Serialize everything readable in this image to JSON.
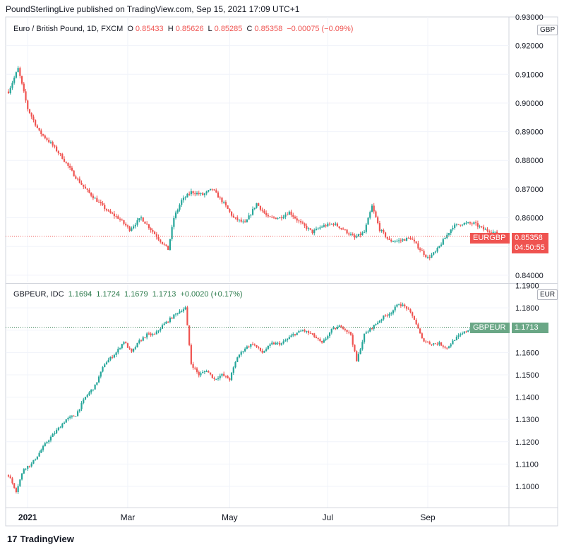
{
  "publisher_line": "PoundSterlingLive published on TradingView.com, Sep 15, 2021 17:09 UTC+1",
  "footer": {
    "brand": "TradingView",
    "logo_glyph": "17"
  },
  "colors": {
    "up": "#26a69a",
    "up_dark": "#2b7a4b",
    "down": "#ef5350",
    "grid": "#f0f3fa",
    "axis_text": "#131722",
    "eurgbp_tag": "#ef5350",
    "gbpeur_tag": "#6aa786"
  },
  "chart_data": [
    {
      "type": "candlestick",
      "symbol_title": "Euro / British Pound, 1D, FXCM",
      "ohlc_legend": {
        "o_label": "O",
        "o": "0.85433",
        "h_label": "H",
        "h": "0.85626",
        "l_label": "L",
        "l": "0.85285",
        "c_label": "C",
        "c": "0.85358",
        "change": "−0.00075 (−0.09%)"
      },
      "currency_label": "GBP",
      "y_ticks": [
        "0.93000",
        "0.92000",
        "0.91000",
        "0.90000",
        "0.89000",
        "0.88000",
        "0.87000",
        "0.86000",
        "0.85000",
        "0.84000"
      ],
      "ylim": [
        0.8375,
        0.93
      ],
      "last_price_tag": {
        "symbol": "EURGBP",
        "price": "0.85358",
        "countdown": "04:50:55"
      },
      "last_price": 0.85358,
      "anchors": [
        [
          0,
          0.904
        ],
        [
          5,
          0.912
        ],
        [
          10,
          0.898
        ],
        [
          16,
          0.89
        ],
        [
          22,
          0.886
        ],
        [
          28,
          0.881
        ],
        [
          34,
          0.875
        ],
        [
          40,
          0.87
        ],
        [
          46,
          0.866
        ],
        [
          52,
          0.862
        ],
        [
          57,
          0.86
        ],
        [
          63,
          0.856
        ],
        [
          69,
          0.86
        ],
        [
          74,
          0.856
        ],
        [
          79,
          0.852
        ],
        [
          83,
          0.849
        ],
        [
          86,
          0.86
        ],
        [
          90,
          0.866
        ],
        [
          95,
          0.869
        ],
        [
          101,
          0.868
        ],
        [
          106,
          0.87
        ],
        [
          112,
          0.865
        ],
        [
          117,
          0.86
        ],
        [
          123,
          0.858
        ],
        [
          129,
          0.865
        ],
        [
          135,
          0.86
        ],
        [
          141,
          0.86
        ],
        [
          146,
          0.862
        ],
        [
          152,
          0.858
        ],
        [
          158,
          0.855
        ],
        [
          163,
          0.857
        ],
        [
          169,
          0.858
        ],
        [
          174,
          0.856
        ],
        [
          180,
          0.853
        ],
        [
          185,
          0.855
        ],
        [
          189,
          0.864
        ],
        [
          193,
          0.856
        ],
        [
          198,
          0.852
        ],
        [
          203,
          0.852
        ],
        [
          209,
          0.853
        ],
        [
          214,
          0.849
        ],
        [
          218,
          0.846
        ],
        [
          222,
          0.848
        ],
        [
          226,
          0.852
        ],
        [
          231,
          0.857
        ],
        [
          236,
          0.858
        ],
        [
          242,
          0.858
        ],
        [
          247,
          0.856
        ],
        [
          252,
          0.855
        ],
        [
          256,
          0.8536
        ]
      ]
    },
    {
      "type": "candlestick",
      "symbol_title": "GBPEUR, IDC",
      "ohlc_legend": {
        "o": "1.1694",
        "h": "1.1724",
        "l": "1.1679",
        "c": "1.1713",
        "change": "+0.0020 (+0.17%)"
      },
      "currency_label": "EUR",
      "y_ticks": [
        "1.1900",
        "1.1800",
        "1.1700",
        "1.1600",
        "1.1500",
        "1.1400",
        "1.1300",
        "1.1200",
        "1.1100",
        "1.1000"
      ],
      "ylim": [
        1.0905,
        1.1905
      ],
      "last_price_tag": {
        "symbol": "GBPEUR",
        "price": "1.1713"
      },
      "last_price": 1.1713,
      "x_ticks": [
        {
          "label": "2021",
          "index": 10
        },
        {
          "label": "Mar",
          "index": 62
        },
        {
          "label": "May",
          "index": 115
        },
        {
          "label": "Jul",
          "index": 166
        },
        {
          "label": "Sep",
          "index": 218
        }
      ],
      "anchors": [
        [
          0,
          1.105
        ],
        [
          4,
          1.098
        ],
        [
          8,
          1.108
        ],
        [
          12,
          1.11
        ],
        [
          16,
          1.115
        ],
        [
          20,
          1.12
        ],
        [
          25,
          1.125
        ],
        [
          30,
          1.13
        ],
        [
          35,
          1.132
        ],
        [
          40,
          1.14
        ],
        [
          45,
          1.145
        ],
        [
          50,
          1.155
        ],
        [
          56,
          1.16
        ],
        [
          60,
          1.165
        ],
        [
          64,
          1.16
        ],
        [
          68,
          1.165
        ],
        [
          72,
          1.168
        ],
        [
          76,
          1.168
        ],
        [
          80,
          1.172
        ],
        [
          84,
          1.175
        ],
        [
          88,
          1.178
        ],
        [
          92,
          1.18
        ],
        [
          95,
          1.155
        ],
        [
          99,
          1.15
        ],
        [
          103,
          1.152
        ],
        [
          107,
          1.148
        ],
        [
          111,
          1.15
        ],
        [
          115,
          1.148
        ],
        [
          119,
          1.158
        ],
        [
          123,
          1.162
        ],
        [
          127,
          1.164
        ],
        [
          132,
          1.16
        ],
        [
          137,
          1.164
        ],
        [
          142,
          1.164
        ],
        [
          148,
          1.168
        ],
        [
          153,
          1.17
        ],
        [
          158,
          1.168
        ],
        [
          163,
          1.164
        ],
        [
          168,
          1.17
        ],
        [
          173,
          1.172
        ],
        [
          178,
          1.168
        ],
        [
          181,
          1.156
        ],
        [
          185,
          1.168
        ],
        [
          190,
          1.172
        ],
        [
          195,
          1.176
        ],
        [
          199,
          1.178
        ],
        [
          203,
          1.182
        ],
        [
          207,
          1.18
        ],
        [
          211,
          1.175
        ],
        [
          215,
          1.166
        ],
        [
          219,
          1.164
        ],
        [
          224,
          1.164
        ],
        [
          228,
          1.162
        ],
        [
          232,
          1.166
        ],
        [
          237,
          1.169
        ],
        [
          241,
          1.1713
        ]
      ]
    }
  ]
}
